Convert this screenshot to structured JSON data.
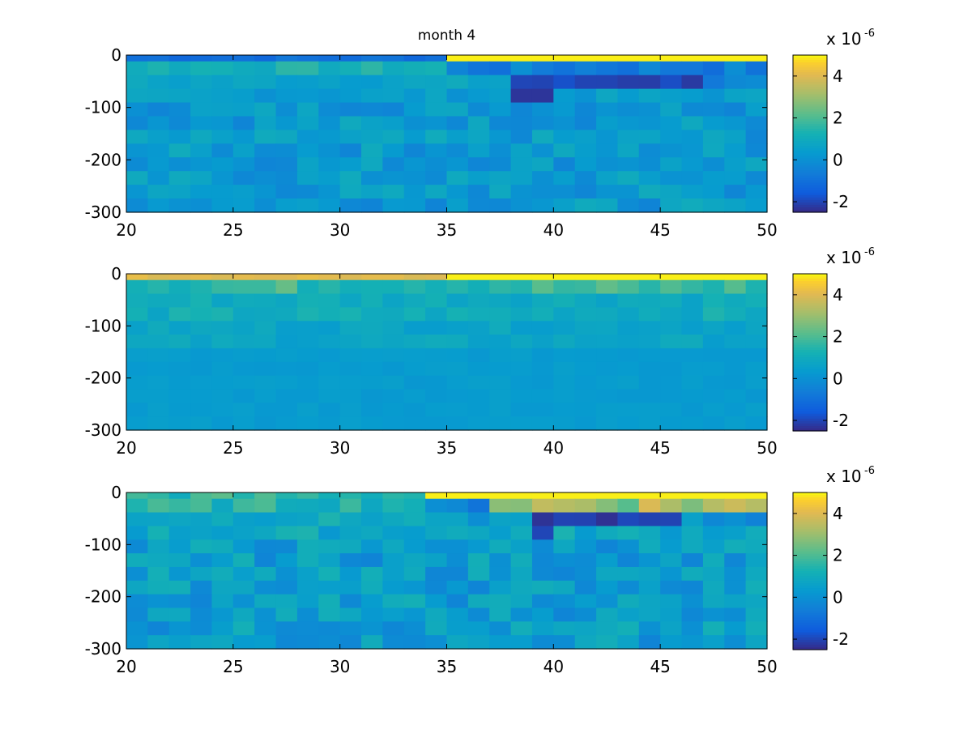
{
  "figure": {
    "title": "month 4"
  },
  "chart_data": [
    {
      "type": "heatmap",
      "title": "month 4",
      "xlim": [
        20,
        50
      ],
      "ylim": [
        -300,
        0
      ],
      "x_ticks": [
        "20",
        "25",
        "30",
        "35",
        "40",
        "45",
        "50"
      ],
      "y_ticks": [
        "0",
        "-100",
        "-200",
        "-300"
      ],
      "colorbar": {
        "exponent_label": "x 10",
        "exponent": "-6",
        "ticks": [
          "4",
          "2",
          "0",
          "-2"
        ],
        "range": [
          -2.5,
          5
        ]
      },
      "rows": [
        [
          -1.2,
          -1.2,
          -1.2,
          -1.2,
          -1.2,
          -1.2,
          -1.4,
          -1.4,
          -1.4,
          -1.4,
          -1.4,
          -1.4,
          -1.2,
          -1.4,
          -1.2,
          -1.2,
          -1.4,
          -1.4,
          -1.8,
          -1.8,
          -1.8,
          -1.8,
          -1.8,
          -1.8,
          -1.5,
          -0.6,
          1.2,
          4.9,
          4.9,
          4.9,
          4.9,
          4.9,
          4.9,
          4.9,
          4.9,
          4.9,
          4.9,
          4.9,
          4.9,
          4.9,
          4.9,
          4.9,
          4.9,
          4.9,
          4.9,
          4.9,
          4.9,
          4.9,
          4.9,
          4.9,
          4.9,
          4.9,
          4.9,
          4.9,
          4.9,
          4.9,
          4.9,
          4.9,
          4.9,
          4.9
        ],
        [
          0.9,
          0.9,
          0.9,
          0.9,
          0.9,
          0.9,
          0.9,
          0.9,
          0.9,
          0.9,
          0.9,
          0.9,
          0.9,
          0.9,
          0.9,
          0.9,
          0.9,
          0.9,
          0.9,
          0.9,
          0.9,
          0.9,
          0.9,
          0.9,
          1.9,
          1.9,
          0.9,
          0.9,
          0.6,
          0.6,
          0.6,
          0.6,
          0.6,
          0.6,
          0.6,
          0.6,
          0.6,
          0.6,
          0.6,
          0.6,
          0.6,
          0.6,
          0.6,
          0.6,
          0.6,
          0.6,
          0.6,
          0.6,
          0.6,
          0.6,
          0.6,
          0.6,
          0.6,
          0.6,
          0.6,
          0.6,
          0.6,
          0.6,
          0.6,
          0.6
        ],
        [
          0.7,
          0.7,
          0.5,
          0.3,
          0.7,
          0.7,
          0.7,
          0.7,
          0.7,
          0.7,
          0.7,
          0.5,
          0.3,
          0.5,
          0.5,
          0.5,
          0.5,
          0.5,
          0.5,
          0.5,
          0.5,
          0.5,
          0.5,
          0.5,
          0.5,
          0.5,
          0.5,
          0.5,
          0.5,
          0.5,
          0.5,
          0.5,
          0.5,
          0.5,
          0.5,
          0.5,
          0.5,
          0.5,
          0.5,
          0.5,
          0.5,
          0.5,
          0.5,
          0.5,
          0.5,
          0.5,
          0.5,
          0.5,
          0.5,
          0.5,
          0.5,
          0.5,
          0.5,
          0.5,
          0.5,
          0.5,
          0.5,
          0.5,
          0.5,
          0.5
        ]
      ]
    },
    {
      "type": "heatmap",
      "xlim": [
        20,
        50
      ],
      "ylim": [
        -300,
        0
      ],
      "x_ticks": [
        "20",
        "25",
        "30",
        "35",
        "40",
        "45",
        "50"
      ],
      "y_ticks": [
        "0",
        "-100",
        "-200",
        "-300"
      ],
      "colorbar": {
        "exponent_label": "x 10",
        "exponent": "-6",
        "ticks": [
          "4",
          "2",
          "0",
          "-2"
        ],
        "range": [
          -2.5,
          5
        ]
      }
    },
    {
      "type": "heatmap",
      "xlim": [
        20,
        50
      ],
      "ylim": [
        -300,
        0
      ],
      "x_ticks": [
        "20",
        "25",
        "30",
        "35",
        "40",
        "45",
        "50"
      ],
      "y_ticks": [
        "0",
        "-100",
        "-200",
        "-300"
      ],
      "colorbar": {
        "exponent_label": "x 10",
        "exponent": "-6",
        "ticks": [
          "4",
          "2",
          "0",
          "-2"
        ],
        "range": [
          -2.5,
          5
        ]
      }
    }
  ]
}
